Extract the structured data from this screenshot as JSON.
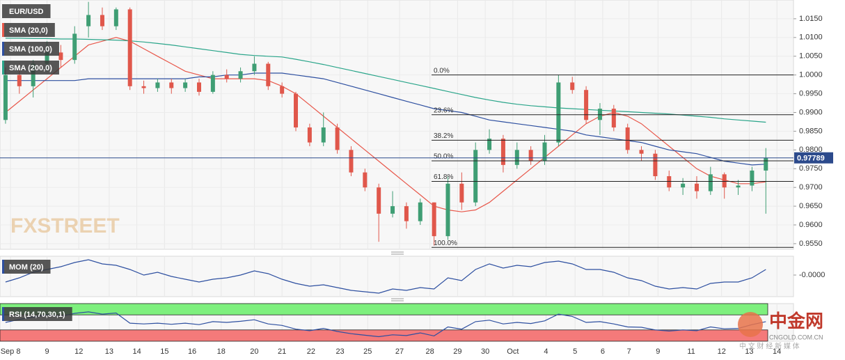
{
  "chart_data": [
    {
      "type": "candlestick",
      "title": "EUR/USD",
      "open": [
        0.988,
        1.0,
        0.997,
        1.003,
        1.006,
        1.004,
        1.013,
        1.016,
        1.013,
        1.0175,
        0.997,
        0.9965,
        0.998,
        0.9965,
        0.998,
        0.9955,
        1.0,
        0.999,
        1.001,
        1.003,
        0.997,
        0.995,
        0.986,
        0.982,
        0.986,
        0.98,
        0.974,
        0.97,
        0.963,
        0.965,
        0.961,
        0.966,
        0.957,
        0.971,
        0.966,
        0.98,
        0.983,
        0.976,
        0.98,
        0.977,
        0.982,
        0.998,
        0.996,
        0.988,
        0.991,
        0.986,
        0.98,
        0.979,
        0.973,
        0.97,
        0.971,
        0.969,
        0.9735,
        0.97,
        0.9705,
        0.9745
      ],
      "high": [
        1.002,
        1.003,
        1.004,
        1.009,
        1.008,
        1.013,
        1.0195,
        1.018,
        1.018,
        1.018,
        0.9985,
        0.999,
        0.999,
        0.999,
        0.999,
        1.001,
        1.0015,
        1.002,
        1.005,
        1.0035,
        0.998,
        0.9955,
        0.987,
        0.99,
        0.987,
        0.981,
        0.975,
        0.971,
        0.969,
        0.966,
        0.967,
        0.966,
        0.973,
        0.974,
        0.982,
        0.9855,
        0.984,
        0.982,
        0.981,
        0.984,
        1.0,
        0.9995,
        0.997,
        0.9925,
        0.992,
        0.987,
        0.981,
        0.98,
        0.9745,
        0.9725,
        0.973,
        0.9755,
        0.974,
        0.972,
        0.9755,
        0.9805
      ],
      "low": [
        0.987,
        0.995,
        0.994,
        1.001,
        1.002,
        1.003,
        1.01,
        1.012,
        1.012,
        0.996,
        0.995,
        0.9955,
        0.995,
        0.9955,
        0.9945,
        0.995,
        0.998,
        0.998,
        1.0,
        0.996,
        0.994,
        0.985,
        0.981,
        0.981,
        0.979,
        0.973,
        0.969,
        0.9555,
        0.962,
        0.959,
        0.96,
        0.9545,
        0.956,
        0.964,
        0.965,
        0.979,
        0.974,
        0.975,
        0.976,
        0.976,
        0.981,
        0.995,
        0.987,
        0.984,
        0.985,
        0.979,
        0.977,
        0.972,
        0.969,
        0.968,
        0.967,
        0.968,
        0.967,
        0.968,
        0.969,
        0.963
      ],
      "close": [
        1.0,
        0.997,
        1.003,
        1.006,
        1.004,
        1.011,
        1.016,
        1.013,
        1.0175,
        0.997,
        0.9965,
        0.998,
        0.9965,
        0.998,
        0.9955,
        1.0,
        0.999,
        1.001,
        1.003,
        0.997,
        0.995,
        0.986,
        0.982,
        0.986,
        0.98,
        0.974,
        0.97,
        0.963,
        0.965,
        0.961,
        0.966,
        0.957,
        0.971,
        0.966,
        0.98,
        0.983,
        0.976,
        0.98,
        0.977,
        0.982,
        0.998,
        0.996,
        0.988,
        0.991,
        0.986,
        0.98,
        0.979,
        0.973,
        0.97,
        0.971,
        0.969,
        0.9735,
        0.97,
        0.9705,
        0.9745,
        0.97789
      ],
      "up_color": "#3f9e74",
      "down_color": "#e0574b",
      "series": [
        {
          "name": "SMA (20,0)",
          "color": "#e8574a",
          "values": [
            0.99,
            0.993,
            0.996,
            0.999,
            1.002,
            1.005,
            1.008,
            1.009,
            1.01,
            1.009,
            1.007,
            1.005,
            1.003,
            1.001,
            1.0,
            0.999,
            0.999,
            0.999,
            0.999,
            0.9985,
            0.997,
            0.995,
            0.992,
            0.989,
            0.986,
            0.983,
            0.98,
            0.977,
            0.974,
            0.971,
            0.968,
            0.965,
            0.964,
            0.9635,
            0.964,
            0.966,
            0.969,
            0.972,
            0.975,
            0.978,
            0.981,
            0.984,
            0.987,
            0.989,
            0.99,
            0.989,
            0.987,
            0.984,
            0.981,
            0.978,
            0.975,
            0.973,
            0.972,
            0.971,
            0.971,
            0.9715
          ]
        },
        {
          "name": "SMA (100,0)",
          "color": "#2d4fa0",
          "values": [
            0.9985,
            0.9985,
            0.9985,
            0.9985,
            0.9985,
            0.9985,
            0.999,
            0.999,
            0.999,
            0.999,
            0.999,
            0.999,
            0.999,
            0.999,
            0.9995,
            0.9995,
            1.0,
            1.0,
            1.0005,
            1.0005,
            1.0005,
            1.0,
            0.9995,
            0.999,
            0.998,
            0.997,
            0.996,
            0.995,
            0.994,
            0.993,
            0.992,
            0.991,
            0.9905,
            0.99,
            0.989,
            0.988,
            0.9875,
            0.987,
            0.9865,
            0.986,
            0.9855,
            0.985,
            0.984,
            0.9835,
            0.983,
            0.9825,
            0.982,
            0.981,
            0.98,
            0.9795,
            0.979,
            0.978,
            0.977,
            0.9765,
            0.976,
            0.9762
          ]
        },
        {
          "name": "SMA (200,0)",
          "color": "#2aa58a",
          "values": [
            1.0098,
            1.0098,
            1.0097,
            1.0097,
            1.0096,
            1.0096,
            1.0095,
            1.0094,
            1.0093,
            1.0091,
            1.0088,
            1.0084,
            1.008,
            1.0075,
            1.007,
            1.0065,
            1.006,
            1.0055,
            1.0052,
            1.005,
            1.0048,
            1.0042,
            1.0035,
            1.0028,
            1.002,
            1.0012,
            1.0004,
            0.9996,
            0.9988,
            0.998,
            0.9972,
            0.9964,
            0.9956,
            0.9948,
            0.994,
            0.9933,
            0.9927,
            0.9922,
            0.9918,
            0.9915,
            0.9912,
            0.991,
            0.9908,
            0.9906,
            0.9904,
            0.9902,
            0.99,
            0.9898,
            0.9896,
            0.9893,
            0.989,
            0.9887,
            0.9883,
            0.988,
            0.9877,
            0.9874
          ]
        }
      ],
      "fib_levels": {
        "labels": [
          "0.0%",
          "23.6%",
          "38.2%",
          "50.0%",
          "61.8%",
          "100.0%"
        ],
        "values": [
          1.0,
          0.9894,
          0.9826,
          0.9771,
          0.9716,
          0.954
        ]
      },
      "last_price": 0.97789,
      "last_price_color": "#2c4a8c",
      "watermark": "FXSTREET",
      "xlim": [
        -0.4,
        57
      ],
      "ylim": [
        0.9535,
        1.02
      ],
      "yticks": [
        {
          "value": 0.955,
          "label": "0.9550"
        },
        {
          "value": 0.96,
          "label": "0.9600"
        },
        {
          "value": 0.965,
          "label": "0.9650"
        },
        {
          "value": 0.97,
          "label": "0.9700"
        },
        {
          "value": 0.975,
          "label": "0.9750"
        },
        {
          "value": 0.98,
          "label": "0.9800"
        },
        {
          "value": 0.985,
          "label": "0.9850"
        },
        {
          "value": 0.99,
          "label": "0.9900"
        },
        {
          "value": 0.995,
          "label": "0.9950"
        },
        {
          "value": 1.0,
          "label": "1.0000"
        },
        {
          "value": 1.005,
          "label": "1.0050"
        },
        {
          "value": 1.01,
          "label": "1.0100"
        },
        {
          "value": 1.015,
          "label": "1.0150"
        }
      ],
      "xticks": [
        {
          "value": 0.36,
          "label": "Sep 8"
        },
        {
          "value": 3.0,
          "label": "9"
        },
        {
          "value": 5.3,
          "label": "12"
        },
        {
          "value": 7.5,
          "label": "13"
        },
        {
          "value": 9.5,
          "label": "14"
        },
        {
          "value": 11.5,
          "label": "15"
        },
        {
          "value": 13.5,
          "label": "16"
        },
        {
          "value": 15.6,
          "label": "18"
        },
        {
          "value": 18.0,
          "label": "20"
        },
        {
          "value": 20.0,
          "label": "21"
        },
        {
          "value": 22.1,
          "label": "22"
        },
        {
          "value": 24.2,
          "label": "23"
        },
        {
          "value": 26.2,
          "label": "25"
        },
        {
          "value": 28.5,
          "label": "27"
        },
        {
          "value": 30.7,
          "label": "28"
        },
        {
          "value": 32.7,
          "label": "29"
        },
        {
          "value": 34.7,
          "label": "30"
        },
        {
          "value": 36.7,
          "label": "Oct"
        },
        {
          "value": 39.1,
          "label": "4"
        },
        {
          "value": 41.2,
          "label": "5"
        },
        {
          "value": 43.2,
          "label": "6"
        },
        {
          "value": 45.1,
          "label": "7"
        },
        {
          "value": 47.2,
          "label": "9"
        },
        {
          "value": 49.6,
          "label": "11"
        },
        {
          "value": 51.8,
          "label": "12"
        },
        {
          "value": 53.8,
          "label": "13"
        },
        {
          "value": 55.8,
          "label": "14"
        }
      ],
      "grid": true
    },
    {
      "type": "line",
      "title": "MOM (20)",
      "color": "#2d4fa0",
      "values": [
        -0.005,
        -0.002,
        0.002,
        0.004,
        0.006,
        0.009,
        0.011,
        0.008,
        0.007,
        0.004,
        0.0,
        0.002,
        -0.001,
        -0.003,
        -0.005,
        -0.003,
        -0.002,
        0.0,
        0.003,
        0.001,
        -0.003,
        -0.006,
        -0.008,
        -0.007,
        -0.009,
        -0.011,
        -0.012,
        -0.013,
        -0.01,
        -0.011,
        -0.009,
        -0.01,
        -0.002,
        -0.004,
        0.004,
        0.008,
        0.005,
        0.007,
        0.006,
        0.009,
        0.01,
        0.008,
        0.004,
        0.004,
        0.002,
        -0.002,
        -0.004,
        -0.008,
        -0.01,
        -0.009,
        -0.01,
        -0.006,
        -0.005,
        -0.005,
        -0.002,
        0.004
      ],
      "ylim": [
        -0.0155,
        0.0135
      ],
      "yticks": [
        {
          "value": 0,
          "label": "-0.0000"
        }
      ]
    },
    {
      "type": "line",
      "title": "RSI (14,70,30,1)",
      "color": "#2d4fa0",
      "values": [
        50,
        58,
        64,
        70,
        66,
        74,
        78,
        72,
        75,
        48,
        46,
        48,
        45,
        48,
        44,
        52,
        50,
        53,
        57,
        46,
        42,
        32,
        28,
        34,
        26,
        20,
        16,
        12,
        17,
        15,
        22,
        14,
        38,
        32,
        52,
        56,
        46,
        50,
        47,
        54,
        72,
        66,
        50,
        52,
        46,
        38,
        37,
        30,
        27,
        30,
        28,
        38,
        33,
        34,
        44,
        52
      ],
      "ylim": [
        0,
        100
      ],
      "bands": [
        {
          "from": 70,
          "to": 100,
          "color": "#7ef07e"
        },
        {
          "from": 0,
          "to": 30,
          "color": "#f47a7a"
        }
      ]
    }
  ],
  "overlay": {
    "logo": "中金网",
    "domain": "CNGOLD.COM.CN",
    "tagline": "中 文 财 经 新 媒 体"
  }
}
